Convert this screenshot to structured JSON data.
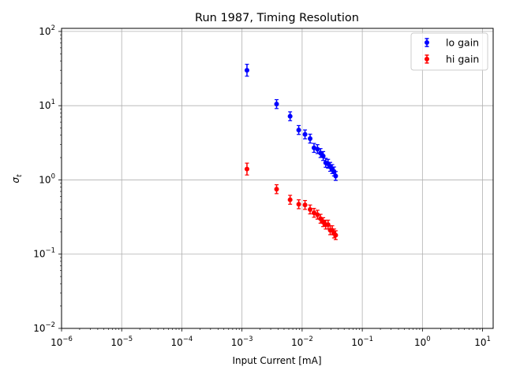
{
  "chart_data": {
    "type": "scatter",
    "title": "Run 1987, Timing Resolution",
    "xlabel": "Input Current [mA]",
    "ylabel_base": "σ",
    "ylabel_sub": "t",
    "xscale": "log",
    "yscale": "log",
    "xlim": [
      1e-06,
      15
    ],
    "ylim": [
      0.01,
      110
    ],
    "x_ticks": [
      {
        "value": 1e-06,
        "base": "10",
        "exp": "−6"
      },
      {
        "value": 1e-05,
        "base": "10",
        "exp": "−5"
      },
      {
        "value": 0.0001,
        "base": "10",
        "exp": "−4"
      },
      {
        "value": 0.001,
        "base": "10",
        "exp": "−3"
      },
      {
        "value": 0.01,
        "base": "10",
        "exp": "−2"
      },
      {
        "value": 0.1,
        "base": "10",
        "exp": "−1"
      },
      {
        "value": 1,
        "base": "10",
        "exp": "0"
      },
      {
        "value": 10,
        "base": "10",
        "exp": "1"
      }
    ],
    "y_ticks": [
      {
        "value": 0.01,
        "base": "10",
        "exp": "−2"
      },
      {
        "value": 0.1,
        "base": "10",
        "exp": "−1"
      },
      {
        "value": 1,
        "base": "10",
        "exp": "0"
      },
      {
        "value": 10,
        "base": "10",
        "exp": "1"
      },
      {
        "value": 100,
        "base": "10",
        "exp": "2"
      }
    ],
    "grid": true,
    "legend_position": "top-right",
    "series": [
      {
        "name": "lo gain",
        "color": "#0000ff",
        "x": [
          0.00121,
          0.00376,
          0.00631,
          0.00878,
          0.01117,
          0.01357,
          0.01576,
          0.01799,
          0.02021,
          0.02239,
          0.02468,
          0.02699,
          0.02931,
          0.03164,
          0.03391,
          0.03612
        ],
        "y": [
          30.0,
          10.5,
          7.2,
          4.7,
          4.1,
          3.6,
          2.7,
          2.6,
          2.3,
          2.1,
          1.7,
          1.65,
          1.5,
          1.4,
          1.3,
          1.13
        ],
        "yerr": [
          0.08,
          0.06,
          0.06,
          0.06,
          0.06,
          0.06,
          0.06,
          0.06,
          0.06,
          0.06,
          0.06,
          0.06,
          0.06,
          0.06,
          0.06,
          0.06
        ]
      },
      {
        "name": "hi gain",
        "color": "#ff0000",
        "x": [
          0.00121,
          0.00376,
          0.00631,
          0.00878,
          0.01117,
          0.01357,
          0.01576,
          0.01799,
          0.02021,
          0.02239,
          0.02468,
          0.02699,
          0.02931,
          0.03164,
          0.03391,
          0.03612
        ],
        "y": [
          1.4,
          0.75,
          0.54,
          0.47,
          0.46,
          0.4,
          0.36,
          0.34,
          0.3,
          0.27,
          0.25,
          0.25,
          0.21,
          0.21,
          0.19,
          0.18
        ],
        "yerr": [
          0.08,
          0.06,
          0.06,
          0.06,
          0.06,
          0.06,
          0.06,
          0.06,
          0.06,
          0.06,
          0.06,
          0.06,
          0.06,
          0.06,
          0.06,
          0.06
        ]
      }
    ]
  }
}
